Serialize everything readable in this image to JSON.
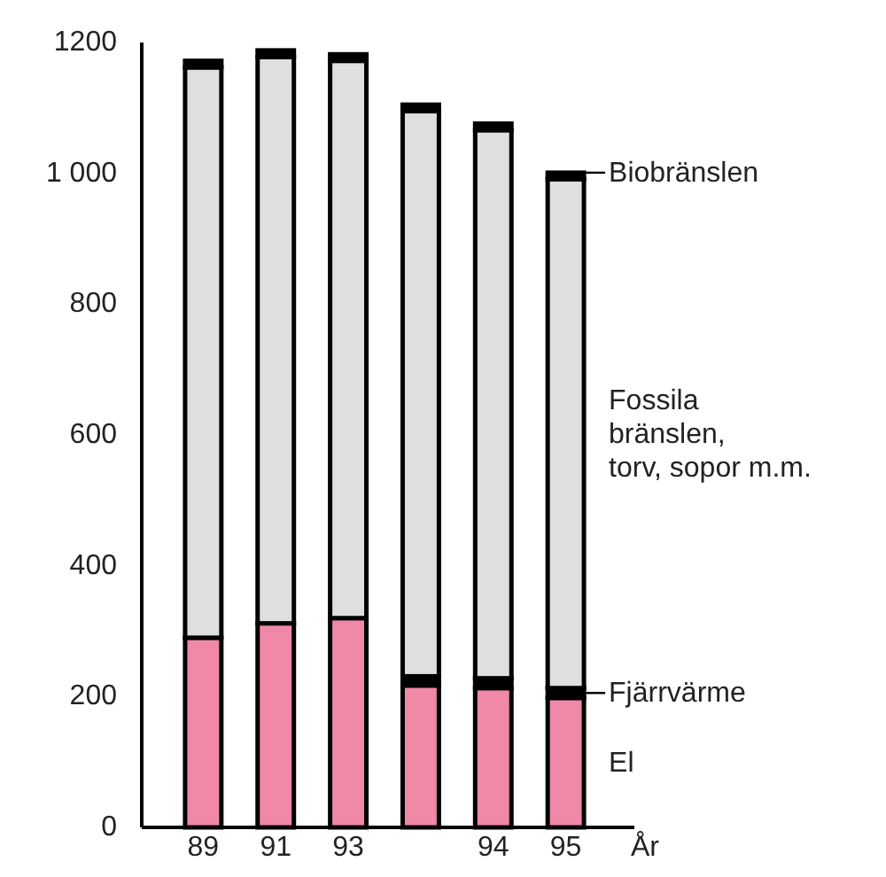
{
  "chart_data": {
    "type": "bar",
    "stacked": true,
    "xlabel": "År",
    "categories": [
      "89",
      "91",
      "93",
      null,
      "94",
      "95"
    ],
    "series": [
      {
        "name": "El",
        "color": "#f088a8",
        "values": [
          290,
          312,
          320,
          217,
          213,
          198
        ]
      },
      {
        "name": "Fjärrvärme",
        "color": "#000000",
        "values": [
          0,
          0,
          0,
          14,
          15,
          15
        ]
      },
      {
        "name": "Fossila\nbränslen,\ntorv, sopor m.m.",
        "color": "#e0dfe0",
        "values": [
          872,
          866,
          852,
          864,
          838,
          778
        ]
      },
      {
        "name": "Biobränslen",
        "color": "#000000",
        "values": [
          10,
          10,
          10,
          10,
          10,
          10
        ]
      }
    ],
    "ylim": [
      0,
      1200
    ],
    "yticks": [
      0,
      200,
      400,
      600,
      800,
      {
        "value": 1000,
        "label": "1 000"
      },
      1200
    ],
    "grid": false,
    "legend": "right"
  }
}
